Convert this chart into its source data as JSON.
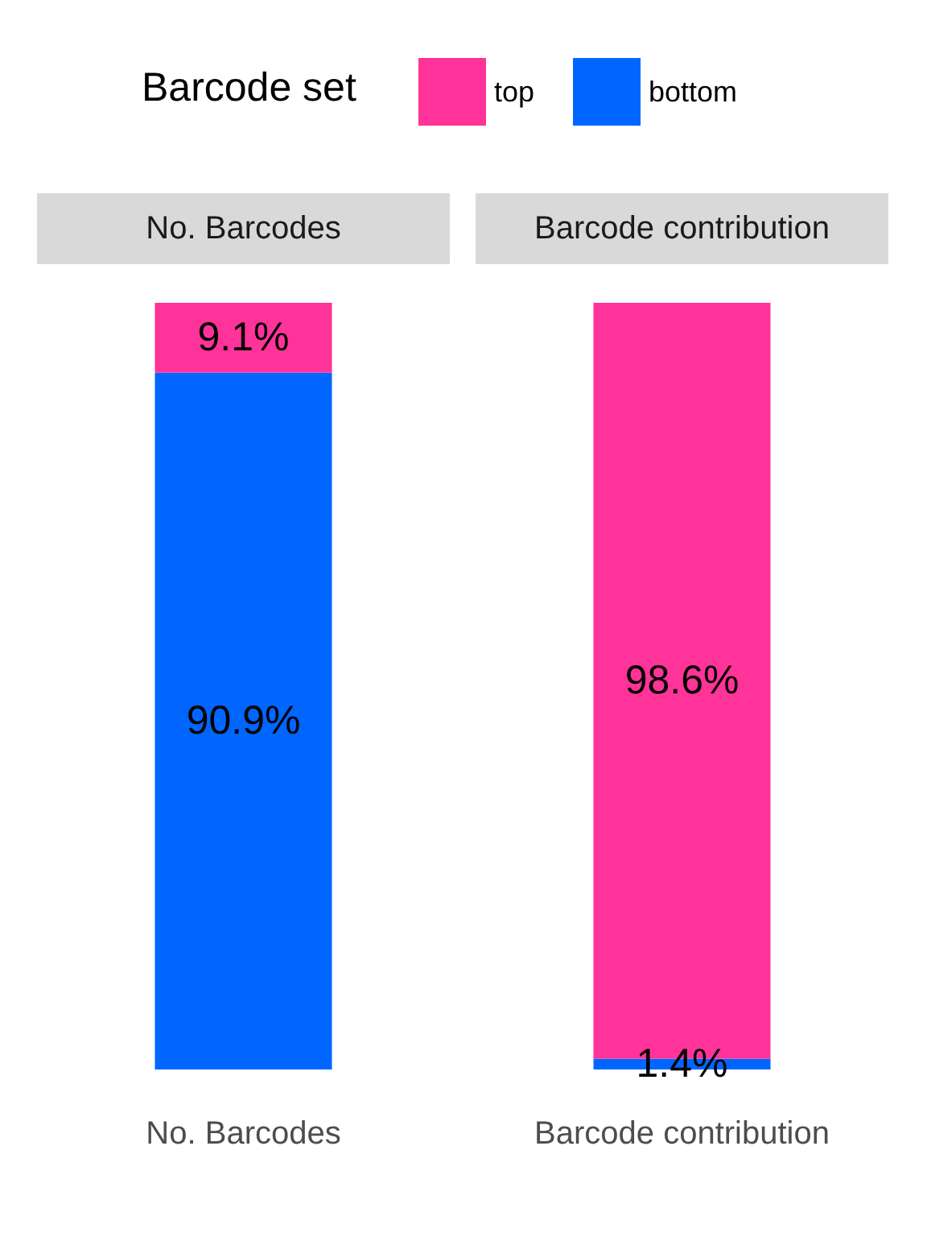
{
  "chart_data": {
    "type": "bar",
    "categories": [
      "No. Barcodes",
      "Barcode contribution"
    ],
    "stacked": true,
    "legend": "top",
    "legend_title": "Barcode set",
    "tick_labels": "x",
    "ylim": [
      0,
      100
    ],
    "annotations": [
      "No. Barcodes",
      "Barcode contribution"
    ],
    "series": [
      {
        "name": "bottom",
        "color": "#0066ff",
        "values": [
          90.9,
          1.4
        ],
        "value_labels": [
          "90.9%",
          "1.4%"
        ]
      },
      {
        "name": "top",
        "color": "#ff3399",
        "values": [
          9.1,
          98.6
        ],
        "value_labels": [
          "9.1%",
          "98.6%"
        ]
      }
    ]
  }
}
